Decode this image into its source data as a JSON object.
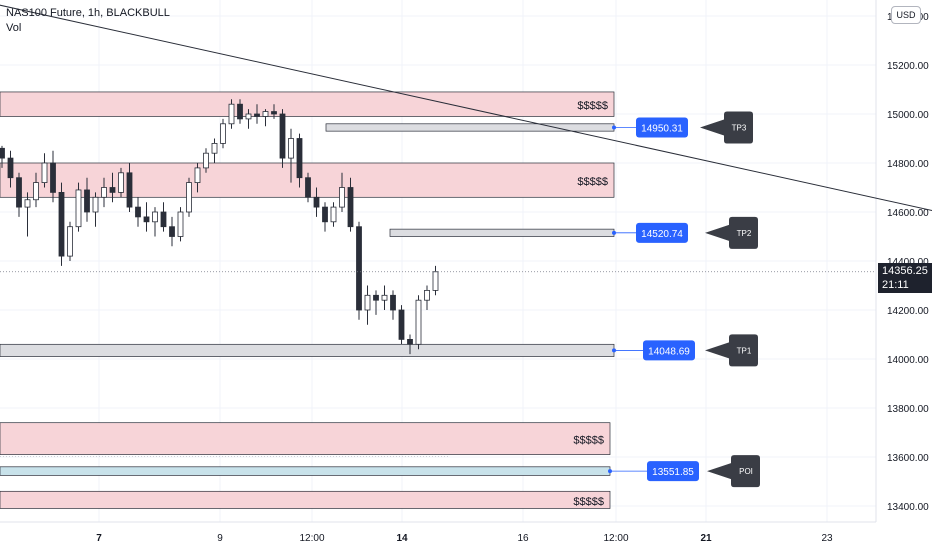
{
  "header": {
    "title": "NAS100 Future, 1h, BLACKBULL",
    "volume_label": "Vol",
    "currency_badge": "USD"
  },
  "colors": {
    "zone_fill": "#f7d4d8",
    "zone_border": "#2a2e39",
    "level_fill": "#dcdde1",
    "label_bg": "#2962ff",
    "callout_bg": "#3a3d45",
    "trend_line": "#2a2e39",
    "candle": "#2a2e39",
    "poi_fill": "#c8e2ea",
    "price_tag_bg": "#1e222d"
  },
  "chart_data": {
    "type": "candlestick",
    "symbol": "NAS100 Future",
    "timeframe": "1h",
    "broker": "BLACKBULL",
    "y_axis": {
      "ticks": [
        15400,
        15200,
        15000,
        14800,
        14600,
        14400,
        14200,
        14000,
        13800,
        13600,
        13400
      ],
      "labels": [
        "15400.00",
        "15200.00",
        "15000.00",
        "14800.00",
        "14600.00",
        "14400.00",
        "14200.00",
        "14000.00",
        "13800.00",
        "13600.00",
        "13400.00"
      ]
    },
    "x_axis": {
      "labels": [
        "7",
        "9",
        "12:00",
        "14",
        "16",
        "12:00",
        "21",
        "23"
      ]
    },
    "last_price": {
      "value": "14356.25",
      "countdown": "21:11"
    },
    "price_path": [
      [
        14860,
        14870,
        14780,
        14820
      ],
      [
        14820,
        14850,
        14700,
        14740
      ],
      [
        14740,
        14760,
        14580,
        14620
      ],
      [
        14620,
        14680,
        14500,
        14650
      ],
      [
        14650,
        14760,
        14620,
        14720
      ],
      [
        14720,
        14840,
        14700,
        14800
      ],
      [
        14800,
        14850,
        14640,
        14680
      ],
      [
        14680,
        14720,
        14380,
        14420
      ],
      [
        14420,
        14560,
        14400,
        14540
      ],
      [
        14540,
        14720,
        14520,
        14690
      ],
      [
        14690,
        14740,
        14560,
        14600
      ],
      [
        14600,
        14680,
        14540,
        14660
      ],
      [
        14660,
        14740,
        14620,
        14700
      ],
      [
        14700,
        14760,
        14640,
        14680
      ],
      [
        14680,
        14780,
        14660,
        14760
      ],
      [
        14760,
        14800,
        14600,
        14620
      ],
      [
        14620,
        14660,
        14540,
        14580
      ],
      [
        14580,
        14640,
        14520,
        14560
      ],
      [
        14560,
        14620,
        14500,
        14600
      ],
      [
        14600,
        14640,
        14520,
        14540
      ],
      [
        14540,
        14580,
        14460,
        14500
      ],
      [
        14500,
        14620,
        14480,
        14600
      ],
      [
        14600,
        14740,
        14580,
        14720
      ],
      [
        14720,
        14800,
        14680,
        14780
      ],
      [
        14780,
        14860,
        14760,
        14840
      ],
      [
        14840,
        14900,
        14800,
        14880
      ],
      [
        14880,
        14980,
        14860,
        14960
      ],
      [
        14960,
        15060,
        14940,
        15040
      ],
      [
        15040,
        15060,
        14960,
        14980
      ],
      [
        14980,
        15020,
        14940,
        15000
      ],
      [
        15000,
        15040,
        14960,
        14990
      ],
      [
        14990,
        15020,
        14950,
        15010
      ],
      [
        15010,
        15040,
        14980,
        15000
      ],
      [
        15000,
        15020,
        14780,
        14820
      ],
      [
        14820,
        14940,
        14720,
        14900
      ],
      [
        14900,
        14920,
        14700,
        14740
      ],
      [
        14740,
        14760,
        14640,
        14660
      ],
      [
        14660,
        14700,
        14580,
        14620
      ],
      [
        14620,
        14640,
        14520,
        14560
      ],
      [
        14560,
        14640,
        14540,
        14620
      ],
      [
        14620,
        14760,
        14600,
        14700
      ],
      [
        14700,
        14740,
        14520,
        14540
      ],
      [
        14540,
        14560,
        14160,
        14200
      ],
      [
        14200,
        14300,
        14140,
        14260
      ],
      [
        14260,
        14280,
        14180,
        14240
      ],
      [
        14240,
        14300,
        14200,
        14260
      ],
      [
        14260,
        14280,
        14160,
        14200
      ],
      [
        14200,
        14220,
        14060,
        14080
      ],
      [
        14080,
        14100,
        14020,
        14060
      ],
      [
        14060,
        14260,
        14040,
        14240
      ],
      [
        14240,
        14300,
        14200,
        14280
      ],
      [
        14280,
        14380,
        14260,
        14356
      ]
    ],
    "zones": [
      {
        "kind": "liquidity",
        "label": "$$$$$",
        "top": 15090,
        "bottom": 14990
      },
      {
        "kind": "liquidity",
        "label": "$$$$$",
        "top": 14800,
        "bottom": 14660
      },
      {
        "kind": "liquidity",
        "label": "$$$$$",
        "top": 13740,
        "bottom": 13610
      },
      {
        "kind": "liquidity",
        "label": "$$$$$",
        "top": 13460,
        "bottom": 13390
      }
    ],
    "levels": [
      {
        "name": "TP3",
        "value": "14950.31",
        "top": 14960,
        "bottom": 14930
      },
      {
        "name": "TP2",
        "value": "14520.74",
        "top": 14530,
        "bottom": 14500
      },
      {
        "name": "TP1",
        "value": "14048.69",
        "top": 14060,
        "bottom": 14010
      },
      {
        "name": "POI",
        "value": "13551.85",
        "top": 13560,
        "bottom": 13525
      }
    ],
    "trendline": {
      "from": {
        "bar": -1,
        "price": 15450
      },
      "to": {
        "bar": 122,
        "price": 14510
      }
    }
  }
}
